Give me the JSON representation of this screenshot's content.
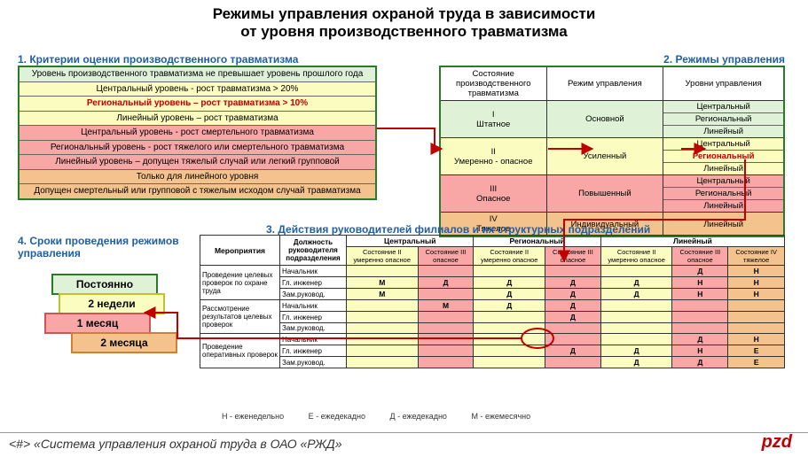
{
  "title_line1": "Режимы управления охраной труда в зависимости",
  "title_line2": "от уровня производственного травматизма",
  "section1": {
    "label": "1. Критерии оценки производственного травматизма",
    "rows": [
      {
        "text": "Уровень производственного травматизма не превышает уровень прошлого года",
        "bg": "#dff2d8",
        "fg": "#000"
      },
      {
        "text": "Центральный уровень - рост травматизма > 20%",
        "bg": "#fbfcc0",
        "fg": "#000",
        "sub": true
      },
      {
        "text": "Региональный уровень – рост травматизма > 10%",
        "bg": "#fbfcc0",
        "fg": "#c00000",
        "sub": true
      },
      {
        "text": "Линейный уровень – рост травматизма",
        "bg": "#fbfcc0",
        "fg": "#000",
        "sub": true
      },
      {
        "text": "Центральный уровень - рост смертельного травматизма",
        "bg": "#f8a6a6",
        "fg": "#000"
      },
      {
        "text": "Региональный уровень - рост тяжелого или смертельного травматизма",
        "bg": "#f8a6a6",
        "fg": "#000"
      },
      {
        "text": "Линейный уровень – допущен тяжелый случай или легкий групповой",
        "bg": "#f8a6a6",
        "fg": "#000"
      },
      {
        "text": "Только для линейного уровня",
        "bg": "#f4c28c",
        "fg": "#000"
      },
      {
        "text": "Допущен смертельный или групповой с тяжелым исходом случай травматизма",
        "bg": "#f4c28c",
        "fg": "#000"
      }
    ]
  },
  "section2": {
    "label": "2. Режимы управления",
    "headers": [
      "Состояние производственного травматизма",
      "Режим управления",
      "Уровни управления"
    ],
    "rows": [
      {
        "state": "I\nШтатное",
        "mode": "Основной",
        "levels": [
          "Центральный",
          "Региональный",
          "Линейный"
        ],
        "bg": "#dff2d8",
        "levels_bg": "#dff2d8",
        "mode_bg": "#dff2d8"
      },
      {
        "state": "II\nУмеренно - опасное",
        "mode": "Усиленный",
        "levels": [
          "Центральный",
          "Региональный",
          "Линейный"
        ],
        "bg": "#fbfcc0",
        "levels_bg": "#fbfcc0",
        "mode_bg": "#fbfcc0",
        "region_fg": "#c00000"
      },
      {
        "state": "III\nОпасное",
        "mode": "Повышенный",
        "levels": [
          "Центральный",
          "Региональный",
          "Линейный"
        ],
        "bg": "#f8a6a6",
        "levels_bg": "#f8a6a6",
        "mode_bg": "#f8a6a6"
      },
      {
        "state": "IV\nТяжелое",
        "mode": "Индивидуальный",
        "levels": [
          "Линейный"
        ],
        "bg": "#f4c28c",
        "levels_bg": "#f4c28c",
        "mode_bg": "#f4c28c"
      }
    ]
  },
  "section3": {
    "label": "3. Действия руководителей филиалов и их структурных подразделений",
    "head_levels": [
      "Центральный",
      "Региональный",
      "Линейный"
    ],
    "head_states_central": [
      "Состояние II умеренно опасное",
      "Состояние III опасное"
    ],
    "head_states_regional": [
      "Состояние II умеренно опасное",
      "Состояние III опасное"
    ],
    "head_states_linear": [
      "Состояние II умеренно опасное",
      "Состояние III опасное",
      "Состояние IV тяжелое"
    ],
    "col_bg": [
      "#fbfcc0",
      "#f8a6a6",
      "#fbfcc0",
      "#f8a6a6",
      "#fbfcc0",
      "#f8a6a6",
      "#f4c28c"
    ],
    "col_meroh": "Мероприятия",
    "col_dolzh": "Должность руководителя подразделения",
    "groups": [
      {
        "name": "Проведение целевых проверок по охране труда",
        "roles": [
          {
            "role": "Начальник",
            "cells": [
              "",
              "",
              "",
              "",
              "",
              "Д",
              "Н"
            ]
          },
          {
            "role": "Гл. инженер",
            "cells": [
              "М",
              "Д",
              "Д",
              "Д",
              "Д",
              "Н",
              "Н"
            ]
          },
          {
            "role": "Зам.руковод.",
            "cells": [
              "М",
              "",
              "Д",
              "Д",
              "Д",
              "Н",
              "Н"
            ]
          }
        ]
      },
      {
        "name": "Рассмотрение результатов целевых проверок",
        "roles": [
          {
            "role": "Начальник",
            "cells": [
              "",
              "М",
              "Д",
              "Д",
              "",
              "",
              ""
            ]
          },
          {
            "role": "Гл. инженер",
            "cells": [
              "",
              "",
              "",
              "Д",
              "",
              "",
              ""
            ]
          },
          {
            "role": "Зам.руковод.",
            "cells": [
              "",
              "",
              "",
              "",
              "",
              "",
              ""
            ]
          }
        ]
      },
      {
        "name": "Проведение оперативных проверок",
        "roles": [
          {
            "role": "Начальник",
            "cells": [
              "",
              "",
              "",
              "",
              "",
              "Д",
              "Н"
            ]
          },
          {
            "role": "Гл. инженер",
            "cells": [
              "",
              "",
              "",
              "Д",
              "Д",
              "Н",
              "Е"
            ]
          },
          {
            "role": "Зам.руковод.",
            "cells": [
              "",
              "",
              "",
              "",
              "Д",
              "Д",
              "Е"
            ]
          }
        ]
      }
    ]
  },
  "section4": {
    "label": "4. Сроки проведения режимов управления",
    "bars": [
      {
        "text": "Постоянно",
        "bg": "#dff2d8",
        "border": "#2a7a2a",
        "offset": 38
      },
      {
        "text": "2 недели",
        "bg": "#fbfcc0",
        "border": "#c0c030",
        "offset": 46
      },
      {
        "text": "1 месяц",
        "bg": "#f8a6a6",
        "border": "#cc5555",
        "offset": 30
      },
      {
        "text": "2 месяца",
        "bg": "#f4c28c",
        "border": "#d08030",
        "offset": 60
      }
    ]
  },
  "legend": {
    "n": "Н - еженедельно",
    "d": "Д - ежедекадно",
    "m": "М - ежемесячно",
    "e": "Е - ежедекадно"
  },
  "footer_prefix": "<#>",
  "footer_text": "«Система управления охраной труда в ОАО «РЖД»",
  "logo": "pzd",
  "connectors": {
    "stroke": "#c00000",
    "width": 2
  }
}
